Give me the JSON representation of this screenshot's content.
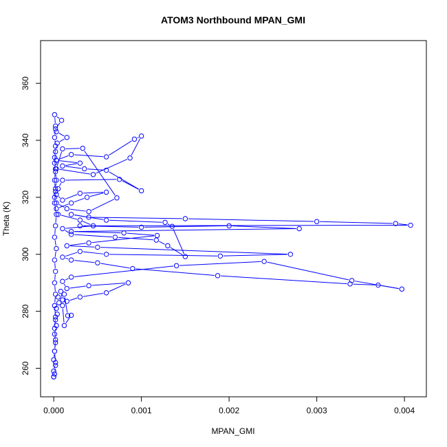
{
  "chart_data": {
    "type": "line",
    "title": "ATOM3 Northbound MPAN_GMI",
    "xlabel": "MPAN_GMI",
    "ylabel": "Theta (K)",
    "xlim": [
      -0.00015,
      0.00425
    ],
    "ylim": [
      250,
      375
    ],
    "x_ticks": [
      0.0,
      0.001,
      0.002,
      0.003,
      0.004
    ],
    "x_tick_labels": [
      "0.000",
      "0.001",
      "0.002",
      "0.003",
      "0.004"
    ],
    "y_ticks": [
      260,
      280,
      300,
      320,
      340,
      360
    ],
    "y_tick_labels": [
      "260",
      "280",
      "300",
      "320",
      "340",
      "360"
    ],
    "grid": false,
    "marker": "open-circle",
    "colors": {
      "series": "#0000ff",
      "axis": "#000000"
    },
    "series": [
      {
        "values": [
          [
            0.0,
            257
          ],
          [
            1e-05,
            258
          ],
          [
            2e-05,
            261
          ],
          [
            0.0,
            263
          ],
          [
            1e-05,
            266
          ],
          [
            2e-05,
            269
          ],
          [
            1e-05,
            272
          ],
          [
            3e-05,
            275
          ],
          [
            2e-05,
            277
          ],
          [
            4e-05,
            279
          ],
          [
            3e-05,
            281
          ],
          [
            6e-05,
            283
          ],
          [
            5e-05,
            285
          ],
          [
            8e-05,
            287
          ],
          [
            0.0001,
            284
          ],
          [
            0.00012,
            286
          ],
          [
            0.00016,
            278.5
          ],
          [
            0.0002,
            278.6
          ],
          [
            0.00012,
            275
          ],
          [
            0.0001,
            282
          ],
          [
            0.00015,
            283.5
          ],
          [
            0.0003,
            285
          ],
          [
            0.0006,
            286.5
          ],
          [
            0.00085,
            290
          ],
          [
            0.0004,
            289
          ],
          [
            0.00015,
            288
          ],
          [
            0.0001,
            290.5
          ],
          [
            0.0002,
            292
          ],
          [
            0.0014,
            296
          ],
          [
            0.0024,
            297.5
          ],
          [
            0.0034,
            290.8
          ],
          [
            0.00397,
            287.8
          ],
          [
            0.0037,
            289.2
          ],
          [
            0.00338,
            289.6
          ],
          [
            0.00187,
            292.5
          ],
          [
            0.0009,
            295
          ],
          [
            0.0005,
            297
          ],
          [
            0.0002,
            298
          ],
          [
            0.0001,
            299
          ],
          [
            0.0003,
            301
          ],
          [
            0.0006,
            300
          ],
          [
            0.0019,
            299.4
          ],
          [
            0.0027,
            300
          ],
          [
            0.0005,
            302.5
          ],
          [
            0.00015,
            303
          ],
          [
            0.0004,
            304
          ],
          [
            0.00118,
            306.6
          ],
          [
            0.0008,
            307.5
          ],
          [
            0.0002,
            308
          ],
          [
            0.0028,
            309
          ],
          [
            0.002,
            310
          ],
          [
            0.001,
            309.5
          ],
          [
            0.0003,
            310
          ],
          [
            0.00407,
            310.2
          ],
          [
            0.0039,
            310.8
          ],
          [
            0.003,
            311.5
          ],
          [
            0.0015,
            312.5
          ],
          [
            0.0004,
            313
          ],
          [
            0.0002,
            314
          ],
          [
            0.0006,
            312
          ],
          [
            0.00127,
            311.2
          ],
          [
            0.00135,
            309.8
          ],
          [
            0.0015,
            299.2
          ],
          [
            0.0013,
            303
          ],
          [
            0.00117,
            305
          ],
          [
            0.0007,
            306
          ],
          [
            0.0002,
            307
          ],
          [
            0.0001,
            309
          ],
          [
            0.00045,
            310
          ],
          [
            0.0003,
            312
          ],
          [
            5e-05,
            314
          ],
          [
            3e-05,
            316
          ],
          [
            0.0002,
            318
          ],
          [
            0.00038,
            320
          ],
          [
            0.0006,
            321.8
          ],
          [
            0.0003,
            321.4
          ],
          [
            0.0001,
            319
          ],
          [
            3e-05,
            321
          ],
          [
            5e-05,
            323
          ],
          [
            0.0001,
            326
          ],
          [
            0.00075,
            326.3
          ],
          [
            0.001,
            322.3
          ],
          [
            0.0006,
            329.5
          ],
          [
            0.00035,
            330
          ],
          [
            0.0001,
            331
          ],
          [
            0.0003,
            332
          ],
          [
            3e-05,
            333
          ],
          [
            0.0002,
            335
          ],
          [
            0.0006,
            334.2
          ],
          [
            0.00092,
            340.4
          ],
          [
            0.001,
            341.5
          ],
          [
            0.00087,
            333.8
          ],
          [
            0.00045,
            328
          ],
          [
            3e-05,
            330
          ],
          [
            0.0001,
            337
          ],
          [
            0.00033,
            337.2
          ],
          [
            0.00072,
            319.8
          ],
          [
            0.0004,
            315
          ],
          [
            0.00015,
            316
          ],
          [
            3e-05,
            318
          ],
          [
            1e-05,
            320
          ],
          [
            2e-05,
            323
          ],
          [
            3e-05,
            326
          ],
          [
            2e-05,
            329
          ],
          [
            1e-05,
            332
          ],
          [
            2e-05,
            336
          ],
          [
            4e-05,
            339
          ],
          [
            0.00015,
            341
          ],
          [
            3e-05,
            343
          ],
          [
            2e-05,
            345
          ],
          [
            1e-05,
            349
          ],
          [
            9e-05,
            347
          ],
          [
            2e-05,
            344
          ],
          [
            1e-05,
            341
          ],
          [
            2e-05,
            338
          ],
          [
            1e-05,
            334
          ],
          [
            2e-05,
            330
          ],
          [
            1e-05,
            326
          ],
          [
            2e-05,
            322
          ],
          [
            1e-05,
            318
          ],
          [
            3e-05,
            314
          ],
          [
            2e-05,
            310
          ],
          [
            1e-05,
            306
          ],
          [
            3e-05,
            302
          ],
          [
            1e-05,
            298
          ],
          [
            2e-05,
            294
          ],
          [
            1e-05,
            290
          ],
          [
            2e-05,
            286
          ],
          [
            1e-05,
            282
          ],
          [
            2e-05,
            278
          ],
          [
            1e-05,
            274
          ],
          [
            2e-05,
            270
          ],
          [
            1e-05,
            266
          ],
          [
            2e-05,
            262
          ],
          [
            0.0,
            259
          ],
          [
            0.0,
            257
          ]
        ]
      }
    ]
  }
}
